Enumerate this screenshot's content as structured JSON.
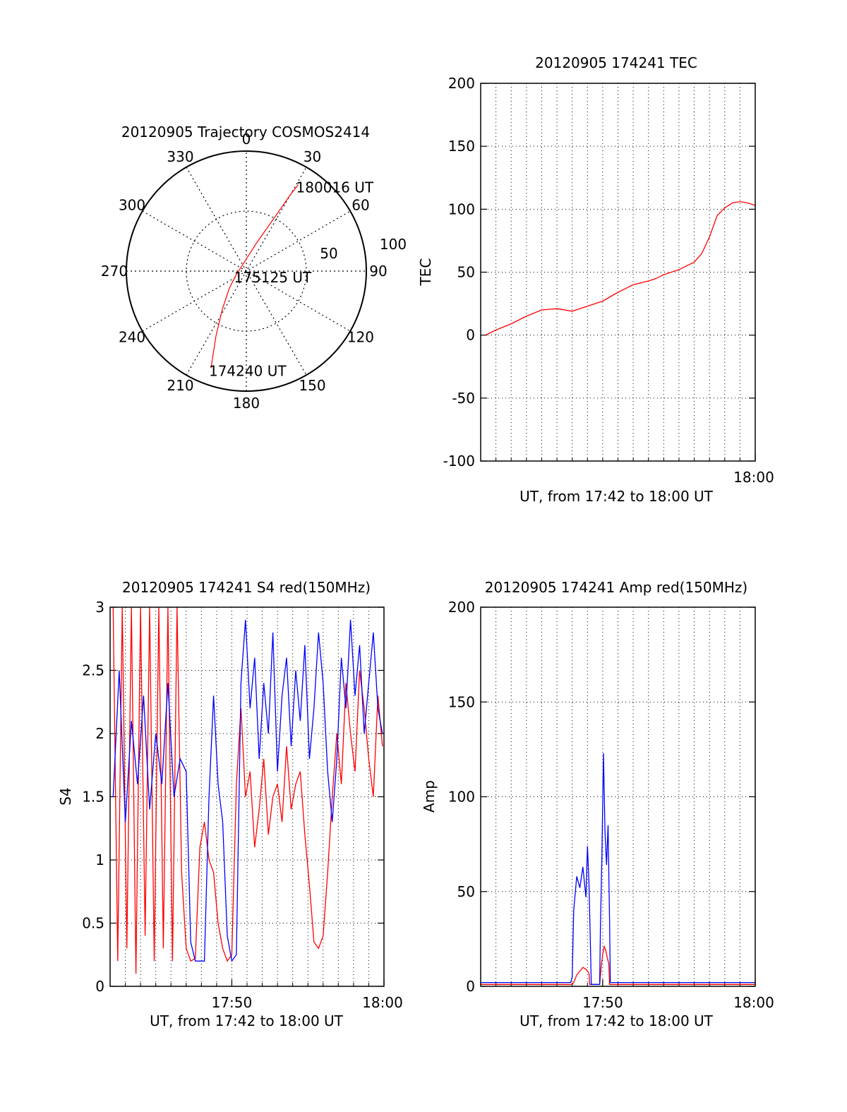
{
  "colors": {
    "trace_red": "#ff0000",
    "trace_blue": "#0000ff",
    "axis": "#000000",
    "grid": "#000000"
  },
  "chart_data": [
    {
      "type": "polar",
      "title": "20120905 Trajectory COSMOS2414",
      "azimuth_labels": [
        "0",
        "30",
        "60",
        "90",
        "120",
        "150",
        "180",
        "210",
        "240",
        "270",
        "300",
        "330"
      ],
      "radius_labels": [
        "50",
        "100"
      ],
      "radius_range": [
        0,
        100
      ],
      "grid": true,
      "trajectory": {
        "azimuth_deg": [
          200,
          205,
          212,
          225,
          250,
          20,
          28,
          30,
          31
        ],
        "radius": [
          86,
          60,
          38,
          20,
          9,
          25,
          52,
          74,
          84
        ]
      },
      "annotations": [
        {
          "text": "174240 UT",
          "azimuth_deg": 200,
          "radius": 86
        },
        {
          "text": "175125 UT",
          "azimuth_deg": 250,
          "radius": 9
        },
        {
          "text": "180016 UT",
          "azimuth_deg": 31,
          "radius": 84
        }
      ]
    },
    {
      "type": "line",
      "title": "20120905 174241 TEC",
      "xlabel": "UT, from 17:42 to 18:00 UT",
      "ylabel": "TEC",
      "xlim": [
        0,
        18
      ],
      "ylim": [
        -100,
        200
      ],
      "yticks": [
        "-100",
        "-50",
        "0",
        "50",
        "100",
        "150",
        "200"
      ],
      "xticks": [
        {
          "x": 18,
          "label": "18:00"
        }
      ],
      "grid": true,
      "series": [
        {
          "x": [
            0.3,
            1,
            2,
            3,
            4,
            5,
            6,
            7,
            8,
            9,
            10,
            11,
            11.5,
            12,
            13,
            14,
            14.5,
            15,
            15.5,
            16,
            16.5,
            17,
            17.5,
            18
          ],
          "values": [
            0,
            4,
            9,
            15,
            20,
            21,
            19,
            23,
            27,
            34,
            40,
            43,
            45,
            48,
            52,
            58,
            65,
            78,
            95,
            101,
            105,
            106,
            105,
            103
          ]
        }
      ]
    },
    {
      "type": "line",
      "title": "20120905 174241 S4 red(150MHz)",
      "xlabel": "UT, from 17:42 to 18:00 UT",
      "ylabel": "S4",
      "xlim": [
        0,
        18
      ],
      "ylim": [
        0,
        3
      ],
      "yticks": [
        "0",
        "0.5",
        "1",
        "1.5",
        "2",
        "2.5",
        "3"
      ],
      "xticks": [
        {
          "x": 8,
          "label": "17:50"
        },
        {
          "x": 18,
          "label": "18:00"
        }
      ],
      "grid": true,
      "series": [
        {
          "x": [
            0.2,
            0.5,
            0.8,
            1.1,
            1.4,
            1.7,
            2,
            2.3,
            2.6,
            2.9,
            3.2,
            3.5,
            3.8,
            4.1,
            4.4,
            4.7,
            5,
            5.3,
            5.6,
            5.9,
            6.2,
            6.5,
            6.8,
            7.1,
            7.4,
            7.7,
            8,
            8.3,
            8.6,
            8.9,
            9.2,
            9.5,
            9.8,
            10.1,
            10.4,
            10.7,
            11,
            11.3,
            11.6,
            11.9,
            12.2,
            12.5,
            12.8,
            13.1,
            13.4,
            13.7,
            14,
            14.3,
            14.6,
            14.9,
            15.2,
            15.5,
            15.8,
            16.1,
            16.4,
            16.7,
            17,
            17.3,
            17.6,
            17.9
          ],
          "values": [
            3,
            0.2,
            3,
            0.3,
            3,
            0.1,
            3,
            0.4,
            3,
            0.2,
            3,
            0.3,
            3,
            0.2,
            3,
            0.9,
            0.3,
            0.2,
            0.22,
            1.1,
            1.3,
            1.0,
            0.9,
            0.5,
            0.3,
            0.2,
            0.25,
            1.6,
            2.2,
            1.5,
            1.7,
            1.1,
            1.4,
            1.8,
            1.2,
            1.5,
            1.6,
            1.3,
            1.9,
            1.4,
            1.6,
            1.7,
            1.2,
            0.8,
            0.35,
            0.3,
            0.4,
            0.9,
            1.5,
            2.0,
            1.6,
            2.4,
            2.0,
            1.7,
            2.5,
            2.2,
            1.8,
            1.5,
            2.3,
            1.9
          ]
        },
        {
          "x": [
            0.2,
            0.6,
            1,
            1.4,
            1.8,
            2.2,
            2.6,
            3,
            3.4,
            3.8,
            4.2,
            4.6,
            5,
            5.3,
            5.6,
            5.9,
            6.2,
            6.5,
            6.8,
            7.1,
            7.4,
            7.7,
            8,
            8.3,
            8.6,
            8.9,
            9.2,
            9.5,
            9.8,
            10.1,
            10.4,
            10.7,
            11,
            11.3,
            11.6,
            11.9,
            12.2,
            12.5,
            12.8,
            13.1,
            13.4,
            13.7,
            14,
            14.3,
            14.6,
            14.9,
            15.2,
            15.5,
            15.8,
            16.1,
            16.4,
            16.7,
            17,
            17.3,
            17.6,
            17.9
          ],
          "values": [
            1.5,
            2.5,
            1.3,
            2.1,
            1.6,
            2.3,
            1.4,
            2.0,
            1.6,
            2.4,
            1.5,
            1.8,
            1.7,
            0.35,
            0.2,
            0.2,
            0.2,
            1.5,
            2.3,
            1.6,
            1.3,
            0.4,
            0.2,
            0.25,
            2.4,
            2.9,
            2.2,
            2.6,
            1.8,
            2.4,
            2.0,
            2.8,
            1.7,
            2.3,
            2.6,
            1.9,
            2.5,
            2.1,
            2.7,
            1.8,
            2.2,
            2.8,
            2.4,
            1.7,
            1.3,
            1.8,
            2.6,
            2.2,
            2.9,
            2.3,
            2.7,
            2.0,
            2.4,
            2.8,
            2.2,
            2.0
          ]
        }
      ]
    },
    {
      "type": "line",
      "title": "20120905 174241 Amp red(150MHz)",
      "xlabel": "UT, from 17:42 to 18:00 UT",
      "ylabel": "Amp",
      "xlim": [
        0,
        18
      ],
      "ylim": [
        0,
        200
      ],
      "yticks": [
        "0",
        "50",
        "100",
        "150",
        "200"
      ],
      "xticks": [
        {
          "x": 8,
          "label": "17:50"
        },
        {
          "x": 18,
          "label": "18:00"
        }
      ],
      "grid": true,
      "series": [
        {
          "x": [
            0,
            6,
            6.1,
            6.3,
            6.5,
            6.7,
            6.9,
            7.1,
            7.15,
            7.8,
            7.9,
            8.0,
            8.1,
            8.2,
            8.3,
            8.4,
            8.45,
            10,
            12,
            14,
            16,
            18
          ],
          "values": [
            1,
            1,
            2,
            6,
            8,
            10,
            9,
            7,
            1,
            1,
            10,
            17,
            21,
            19,
            15,
            12,
            1,
            1,
            1,
            1,
            1,
            1
          ]
        },
        {
          "x": [
            0,
            2,
            4,
            5.9,
            6,
            6.1,
            6.3,
            6.5,
            6.7,
            6.9,
            7.0,
            7.1,
            7.2,
            7.25,
            7.8,
            7.85,
            7.95,
            8.05,
            8.15,
            8.25,
            8.35,
            8.45,
            8.5,
            10,
            12,
            14,
            16,
            18
          ],
          "values": [
            2,
            2,
            2,
            2,
            5,
            40,
            58,
            52,
            63,
            47,
            74,
            55,
            20,
            1,
            1,
            30,
            70,
            123,
            82,
            64,
            85,
            35,
            2,
            2,
            2,
            2,
            2,
            2
          ]
        }
      ]
    }
  ]
}
